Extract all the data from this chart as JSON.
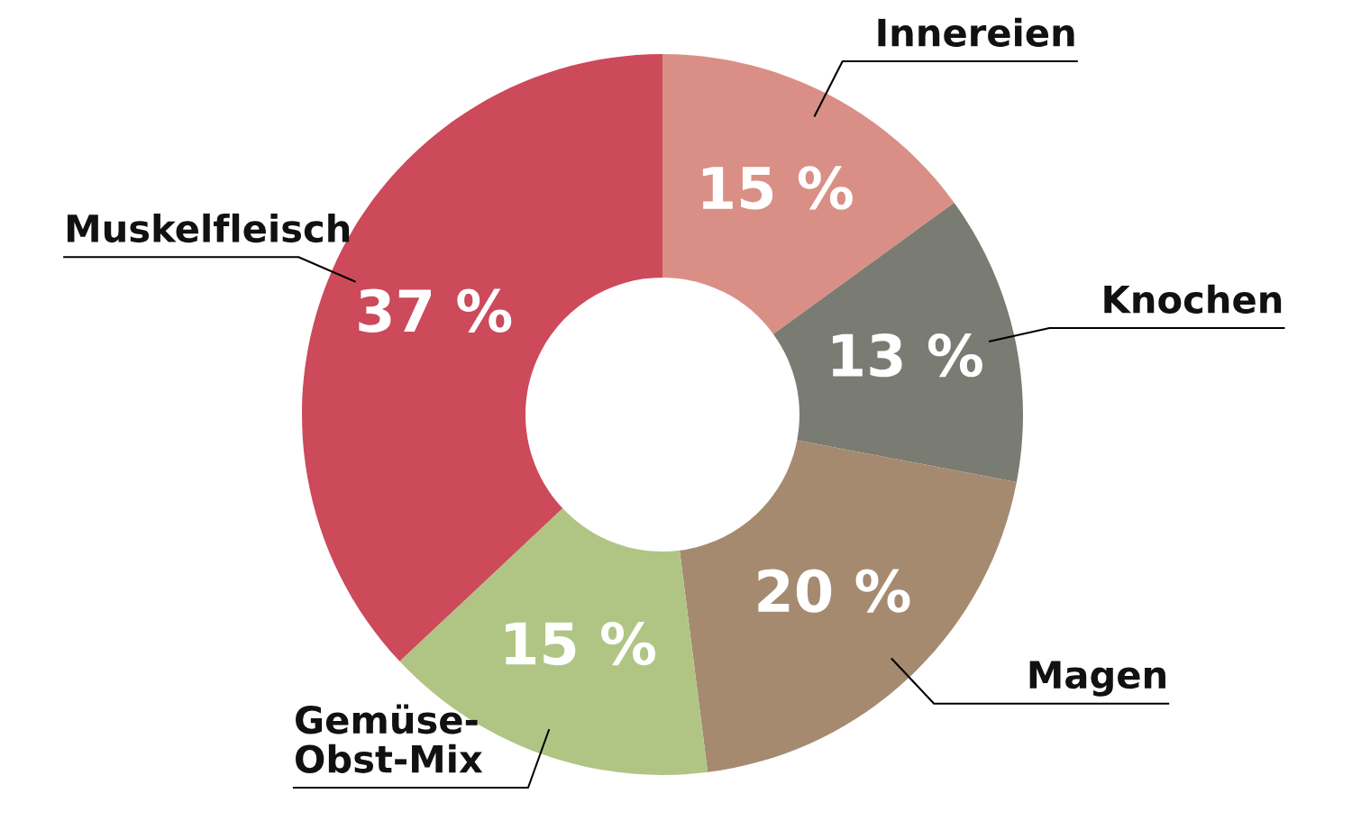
{
  "chart_data": {
    "type": "donut",
    "categories": [
      "Innereien",
      "Knochen",
      "Magen",
      "Gemüse-\nObst-Mix",
      "Muskelfleisch"
    ],
    "values": [
      15,
      13,
      20,
      15,
      37
    ],
    "colors": [
      "#d98f85",
      "#7a7b72",
      "#a58a70",
      "#b0c584",
      "#cc4a5a"
    ],
    "value_labels": [
      "15 %",
      "13 %",
      "20 %",
      "15 %",
      "37 %"
    ]
  }
}
